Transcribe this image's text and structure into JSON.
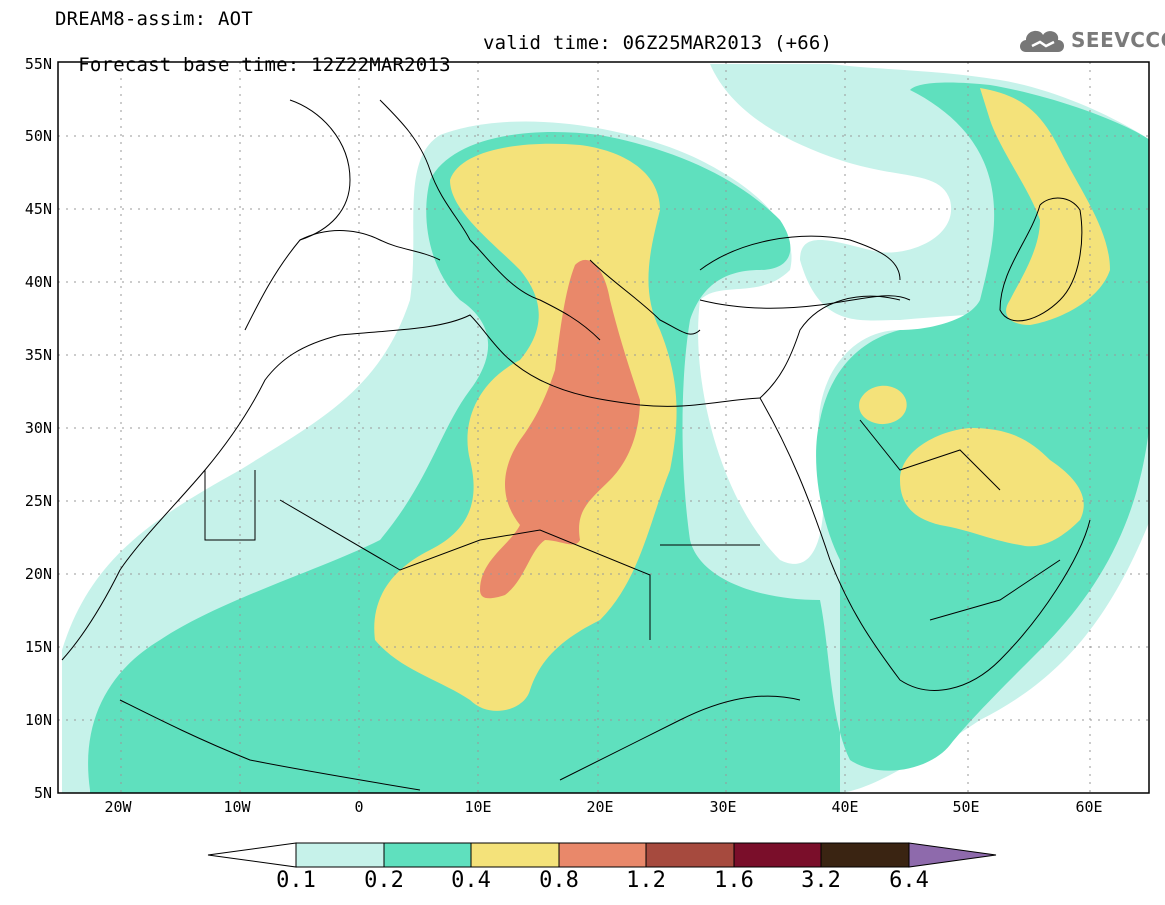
{
  "header": {
    "title": "DREAM8-assim: AOT",
    "base_time": "Forecast base time: 12Z22MAR2013",
    "valid_time": "valid time: 06Z25MAR2013 (+66)"
  },
  "logo": {
    "text": "SEEVCCC",
    "icon": "cloud-icon"
  },
  "map": {
    "lat_labels": [
      "55N",
      "50N",
      "45N",
      "40N",
      "35N",
      "30N",
      "25N",
      "20N",
      "15N",
      "10N",
      "5N"
    ],
    "lon_labels": [
      "20W",
      "10W",
      "0",
      "10E",
      "20E",
      "30E",
      "40E",
      "50E",
      "60E"
    ],
    "grid": true
  },
  "colorbar": {
    "levels": [
      "0.1",
      "0.2",
      "0.4",
      "0.8",
      "1.2",
      "1.6",
      "3.2",
      "6.4"
    ],
    "colors": [
      "#c6f2ea",
      "#5fe0be",
      "#f4e27a",
      "#e9886a",
      "#a64a3e",
      "#7a0e2a",
      "#3a2412",
      "#8e6aac"
    ],
    "under_color": "#ffffff"
  }
}
